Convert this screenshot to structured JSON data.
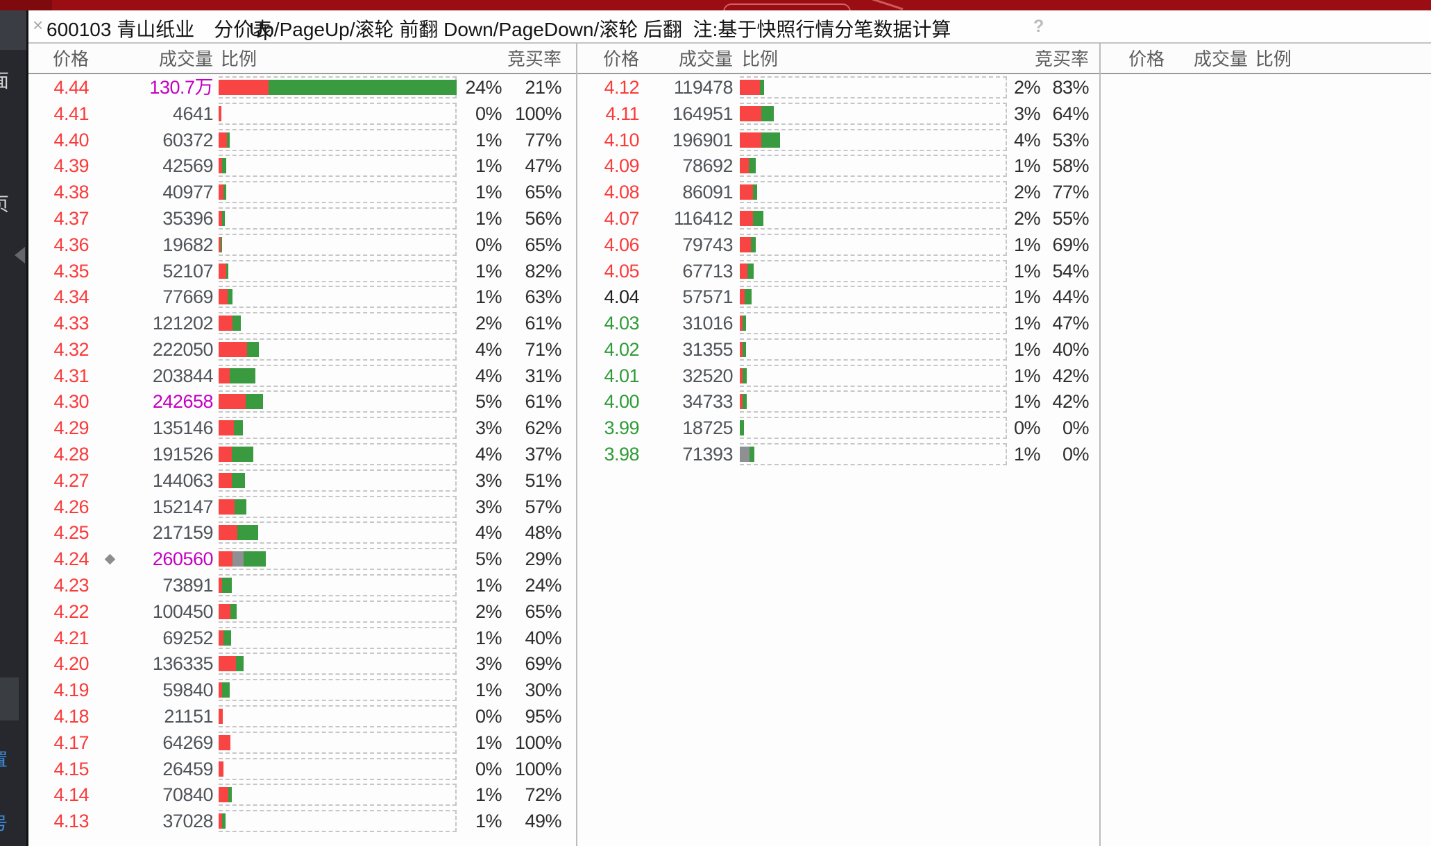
{
  "window": {
    "close_label": "×",
    "title": "600103 青山纸业　分价表",
    "hint": "Up/PageUp/滚轮 前翻 Down/PageDown/滚轮 后翻  注:基于快照行情分笔数据计算",
    "help_label": "?"
  },
  "colors": {
    "titlebar_red": "#9a0d12",
    "bar_red": "#f84442",
    "bar_green": "#3a9a3f",
    "bar_gray": "#8f9093",
    "price_up": "#fb3a3a",
    "price_down": "#2f9b38",
    "price_flat": "#202020",
    "volume_text": "#4f545a",
    "volume_highlight": "#c400c4",
    "percent_text": "#2e2e2e",
    "header_text": "#5e5e5e"
  },
  "sidebar": {
    "partial_items": [
      {
        "char": "面",
        "tone": "light"
      },
      {
        "char": "页",
        "tone": "light"
      },
      {
        "char": "置",
        "tone": "blue"
      },
      {
        "char": "号",
        "tone": "blue"
      }
    ],
    "collapse_arrow": "left-triangle"
  },
  "table": {
    "headers": {
      "price": "价格",
      "volume": "成交量",
      "ratio": "比例",
      "bid": "竞买率"
    },
    "max_volume": 1307000,
    "columns": [
      {
        "rows": [
          {
            "price": "4.44",
            "trend": "up",
            "volume": "130.7万",
            "value": 1307000,
            "vol_style": "highlight",
            "ratio": "24%",
            "bid": "21%"
          },
          {
            "price": "4.41",
            "trend": "up",
            "volume": "4641",
            "value": 4641,
            "ratio": "0%",
            "bid": "100%"
          },
          {
            "price": "4.40",
            "trend": "up",
            "volume": "60372",
            "value": 60372,
            "ratio": "1%",
            "bid": "77%"
          },
          {
            "price": "4.39",
            "trend": "up",
            "volume": "42569",
            "value": 42569,
            "ratio": "1%",
            "bid": "47%"
          },
          {
            "price": "4.38",
            "trend": "up",
            "volume": "40977",
            "value": 40977,
            "ratio": "1%",
            "bid": "65%"
          },
          {
            "price": "4.37",
            "trend": "up",
            "volume": "35396",
            "value": 35396,
            "ratio": "1%",
            "bid": "56%"
          },
          {
            "price": "4.36",
            "trend": "up",
            "volume": "19682",
            "value": 19682,
            "ratio": "0%",
            "bid": "65%"
          },
          {
            "price": "4.35",
            "trend": "up",
            "volume": "52107",
            "value": 52107,
            "ratio": "1%",
            "bid": "82%"
          },
          {
            "price": "4.34",
            "trend": "up",
            "volume": "77669",
            "value": 77669,
            "ratio": "1%",
            "bid": "63%"
          },
          {
            "price": "4.33",
            "trend": "up",
            "volume": "121202",
            "value": 121202,
            "ratio": "2%",
            "bid": "61%"
          },
          {
            "price": "4.32",
            "trend": "up",
            "volume": "222050",
            "value": 222050,
            "ratio": "4%",
            "bid": "71%"
          },
          {
            "price": "4.31",
            "trend": "up",
            "volume": "203844",
            "value": 203844,
            "ratio": "4%",
            "bid": "31%"
          },
          {
            "price": "4.30",
            "trend": "up",
            "volume": "242658",
            "value": 242658,
            "vol_style": "highlight",
            "ratio": "5%",
            "bid": "61%"
          },
          {
            "price": "4.29",
            "trend": "up",
            "volume": "135146",
            "value": 135146,
            "ratio": "3%",
            "bid": "62%"
          },
          {
            "price": "4.28",
            "trend": "up",
            "volume": "191526",
            "value": 191526,
            "ratio": "4%",
            "bid": "37%"
          },
          {
            "price": "4.27",
            "trend": "up",
            "volume": "144063",
            "value": 144063,
            "ratio": "3%",
            "bid": "51%"
          },
          {
            "price": "4.26",
            "trend": "up",
            "volume": "152147",
            "value": 152147,
            "ratio": "3%",
            "bid": "57%"
          },
          {
            "price": "4.25",
            "trend": "up",
            "volume": "217159",
            "value": 217159,
            "ratio": "4%",
            "bid": "48%"
          },
          {
            "price": "4.24",
            "trend": "up",
            "volume": "260560",
            "value": 260560,
            "vol_style": "highlight",
            "ratio": "5%",
            "bid": "29%",
            "marker": true,
            "segments": [
              [
                "red",
                29
              ],
              [
                "gray",
                24
              ],
              [
                "green",
                47
              ]
            ]
          },
          {
            "price": "4.23",
            "trend": "up",
            "volume": "73891",
            "value": 73891,
            "ratio": "1%",
            "bid": "24%"
          },
          {
            "price": "4.22",
            "trend": "up",
            "volume": "100450",
            "value": 100450,
            "ratio": "2%",
            "bid": "65%"
          },
          {
            "price": "4.21",
            "trend": "up",
            "volume": "69252",
            "value": 69252,
            "ratio": "1%",
            "bid": "40%"
          },
          {
            "price": "4.20",
            "trend": "up",
            "volume": "136335",
            "value": 136335,
            "ratio": "3%",
            "bid": "69%"
          },
          {
            "price": "4.19",
            "trend": "up",
            "volume": "59840",
            "value": 59840,
            "ratio": "1%",
            "bid": "30%"
          },
          {
            "price": "4.18",
            "trend": "up",
            "volume": "21151",
            "value": 21151,
            "ratio": "0%",
            "bid": "95%"
          },
          {
            "price": "4.17",
            "trend": "up",
            "volume": "64269",
            "value": 64269,
            "ratio": "1%",
            "bid": "100%"
          },
          {
            "price": "4.15",
            "trend": "up",
            "volume": "26459",
            "value": 26459,
            "ratio": "0%",
            "bid": "100%"
          },
          {
            "price": "4.14",
            "trend": "up",
            "volume": "70840",
            "value": 70840,
            "ratio": "1%",
            "bid": "72%"
          },
          {
            "price": "4.13",
            "trend": "up",
            "volume": "37028",
            "value": 37028,
            "ratio": "1%",
            "bid": "49%"
          }
        ]
      },
      {
        "rows": [
          {
            "price": "4.12",
            "trend": "up",
            "volume": "119478",
            "value": 119478,
            "ratio": "2%",
            "bid": "83%"
          },
          {
            "price": "4.11",
            "trend": "up",
            "volume": "164951",
            "value": 164951,
            "ratio": "3%",
            "bid": "64%"
          },
          {
            "price": "4.10",
            "trend": "up",
            "volume": "196901",
            "value": 196901,
            "ratio": "4%",
            "bid": "53%"
          },
          {
            "price": "4.09",
            "trend": "up",
            "volume": "78692",
            "value": 78692,
            "ratio": "1%",
            "bid": "58%"
          },
          {
            "price": "4.08",
            "trend": "up",
            "volume": "86091",
            "value": 86091,
            "ratio": "2%",
            "bid": "77%"
          },
          {
            "price": "4.07",
            "trend": "up",
            "volume": "116412",
            "value": 116412,
            "ratio": "2%",
            "bid": "55%"
          },
          {
            "price": "4.06",
            "trend": "up",
            "volume": "79743",
            "value": 79743,
            "ratio": "1%",
            "bid": "69%"
          },
          {
            "price": "4.05",
            "trend": "up",
            "volume": "67713",
            "value": 67713,
            "ratio": "1%",
            "bid": "54%"
          },
          {
            "price": "4.04",
            "trend": "flat",
            "volume": "57571",
            "value": 57571,
            "ratio": "1%",
            "bid": "44%"
          },
          {
            "price": "4.03",
            "trend": "down",
            "volume": "31016",
            "value": 31016,
            "ratio": "1%",
            "bid": "47%"
          },
          {
            "price": "4.02",
            "trend": "down",
            "volume": "31355",
            "value": 31355,
            "ratio": "1%",
            "bid": "40%"
          },
          {
            "price": "4.01",
            "trend": "down",
            "volume": "32520",
            "value": 32520,
            "ratio": "1%",
            "bid": "42%"
          },
          {
            "price": "4.00",
            "trend": "down",
            "volume": "34733",
            "value": 34733,
            "ratio": "1%",
            "bid": "42%"
          },
          {
            "price": "3.99",
            "trend": "down",
            "volume": "18725",
            "value": 18725,
            "ratio": "0%",
            "bid": "0%"
          },
          {
            "price": "3.98",
            "trend": "down",
            "volume": "71393",
            "value": 71393,
            "ratio": "1%",
            "bid": "0%",
            "segments": [
              [
                "gray",
                68
              ],
              [
                "green",
                32
              ]
            ]
          }
        ]
      },
      {
        "rows": []
      }
    ]
  }
}
